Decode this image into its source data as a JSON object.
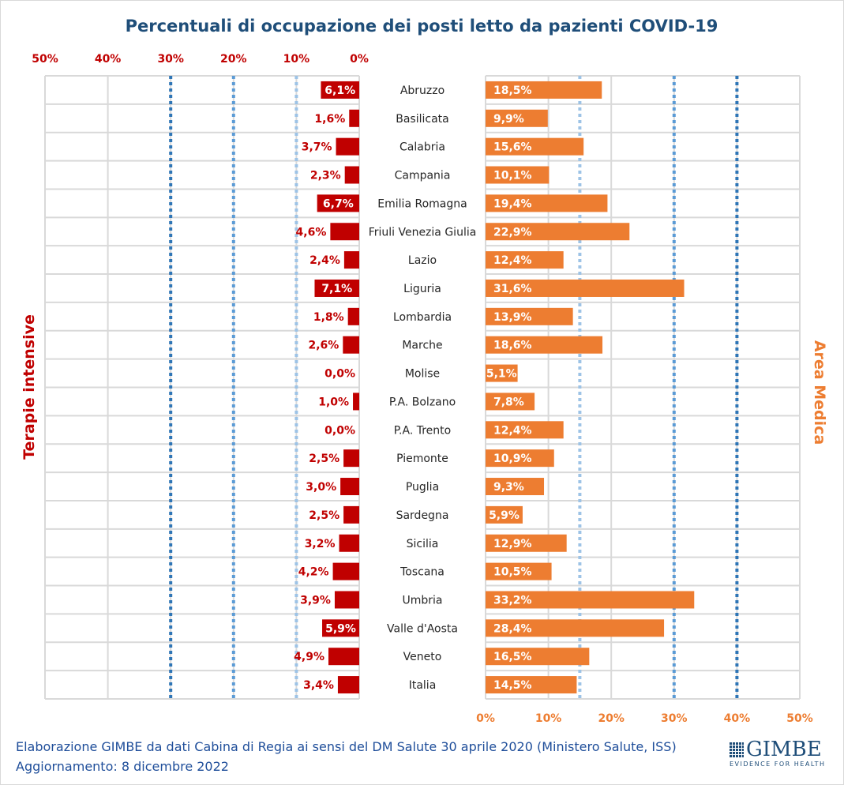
{
  "chart_data": {
    "type": "bar",
    "title": "Percentuali di occupazione dei posti letto da pazienti COVID-19",
    "categories": [
      "Abruzzo",
      "Basilicata",
      "Calabria",
      "Campania",
      "Emilia Romagna",
      "Friuli Venezia Giulia",
      "Lazio",
      "Liguria",
      "Lombardia",
      "Marche",
      "Molise",
      "P.A. Bolzano",
      "P.A. Trento",
      "Piemonte",
      "Puglia",
      "Sardegna",
      "Sicilia",
      "Toscana",
      "Umbria",
      "Valle d'Aosta",
      "Veneto",
      "Italia"
    ],
    "series": [
      {
        "name": "Terapie intensive",
        "color": "#c00000",
        "direction": "left",
        "values": [
          6.1,
          1.6,
          3.7,
          2.3,
          6.7,
          4.6,
          2.4,
          7.1,
          1.8,
          2.6,
          0.0,
          1.0,
          0.0,
          2.5,
          3.0,
          2.5,
          3.2,
          4.2,
          3.9,
          5.9,
          4.9,
          3.4
        ],
        "labels": [
          "6,1%",
          "1,6%",
          "3,7%",
          "2,3%",
          "6,7%",
          "4,6%",
          "2,4%",
          "7,1%",
          "1,8%",
          "2,6%",
          "0,0%",
          "1,0%",
          "0,0%",
          "2,5%",
          "3,0%",
          "2,5%",
          "3,2%",
          "4,2%",
          "3,9%",
          "5,9%",
          "4,9%",
          "3,4%"
        ],
        "thresholds": [
          10,
          20,
          30
        ],
        "tick_labels": [
          "50%",
          "40%",
          "30%",
          "20%",
          "10%",
          "0%"
        ]
      },
      {
        "name": "Area Medica",
        "color": "#ed7d31",
        "direction": "right",
        "values": [
          18.5,
          9.9,
          15.6,
          10.1,
          19.4,
          22.9,
          12.4,
          31.6,
          13.9,
          18.6,
          5.1,
          7.8,
          12.4,
          10.9,
          9.3,
          5.9,
          12.9,
          10.5,
          33.2,
          28.4,
          16.5,
          14.5
        ],
        "labels": [
          "18,5%",
          "9,9%",
          "15,6%",
          "10,1%",
          "19,4%",
          "22,9%",
          "12,4%",
          "31,6%",
          "13,9%",
          "18,6%",
          "5,1%",
          "7,8%",
          "12,4%",
          "10,9%",
          "9,3%",
          "5,9%",
          "12,9%",
          "10,5%",
          "33,2%",
          "28,4%",
          "16,5%",
          "14,5%"
        ],
        "thresholds": [
          15,
          30,
          40
        ],
        "tick_labels": [
          "0%",
          "10%",
          "20%",
          "30%",
          "40%",
          "50%"
        ]
      }
    ],
    "xlim": [
      0,
      50
    ],
    "grid": true,
    "threshold_colors": [
      "#9dc3e6",
      "#5b9bd5",
      "#2e75b6"
    ]
  },
  "footer": {
    "source": "Elaborazione GIMBE da dati Cabina di Regia ai sensi del DM Salute 30 aprile 2020 (Ministero Salute, ISS)",
    "updated": "Aggiornamento: 8 dicembre 2022"
  },
  "logo": {
    "name": "GIMBE",
    "tagline": "EVIDENCE FOR HEALTH"
  }
}
